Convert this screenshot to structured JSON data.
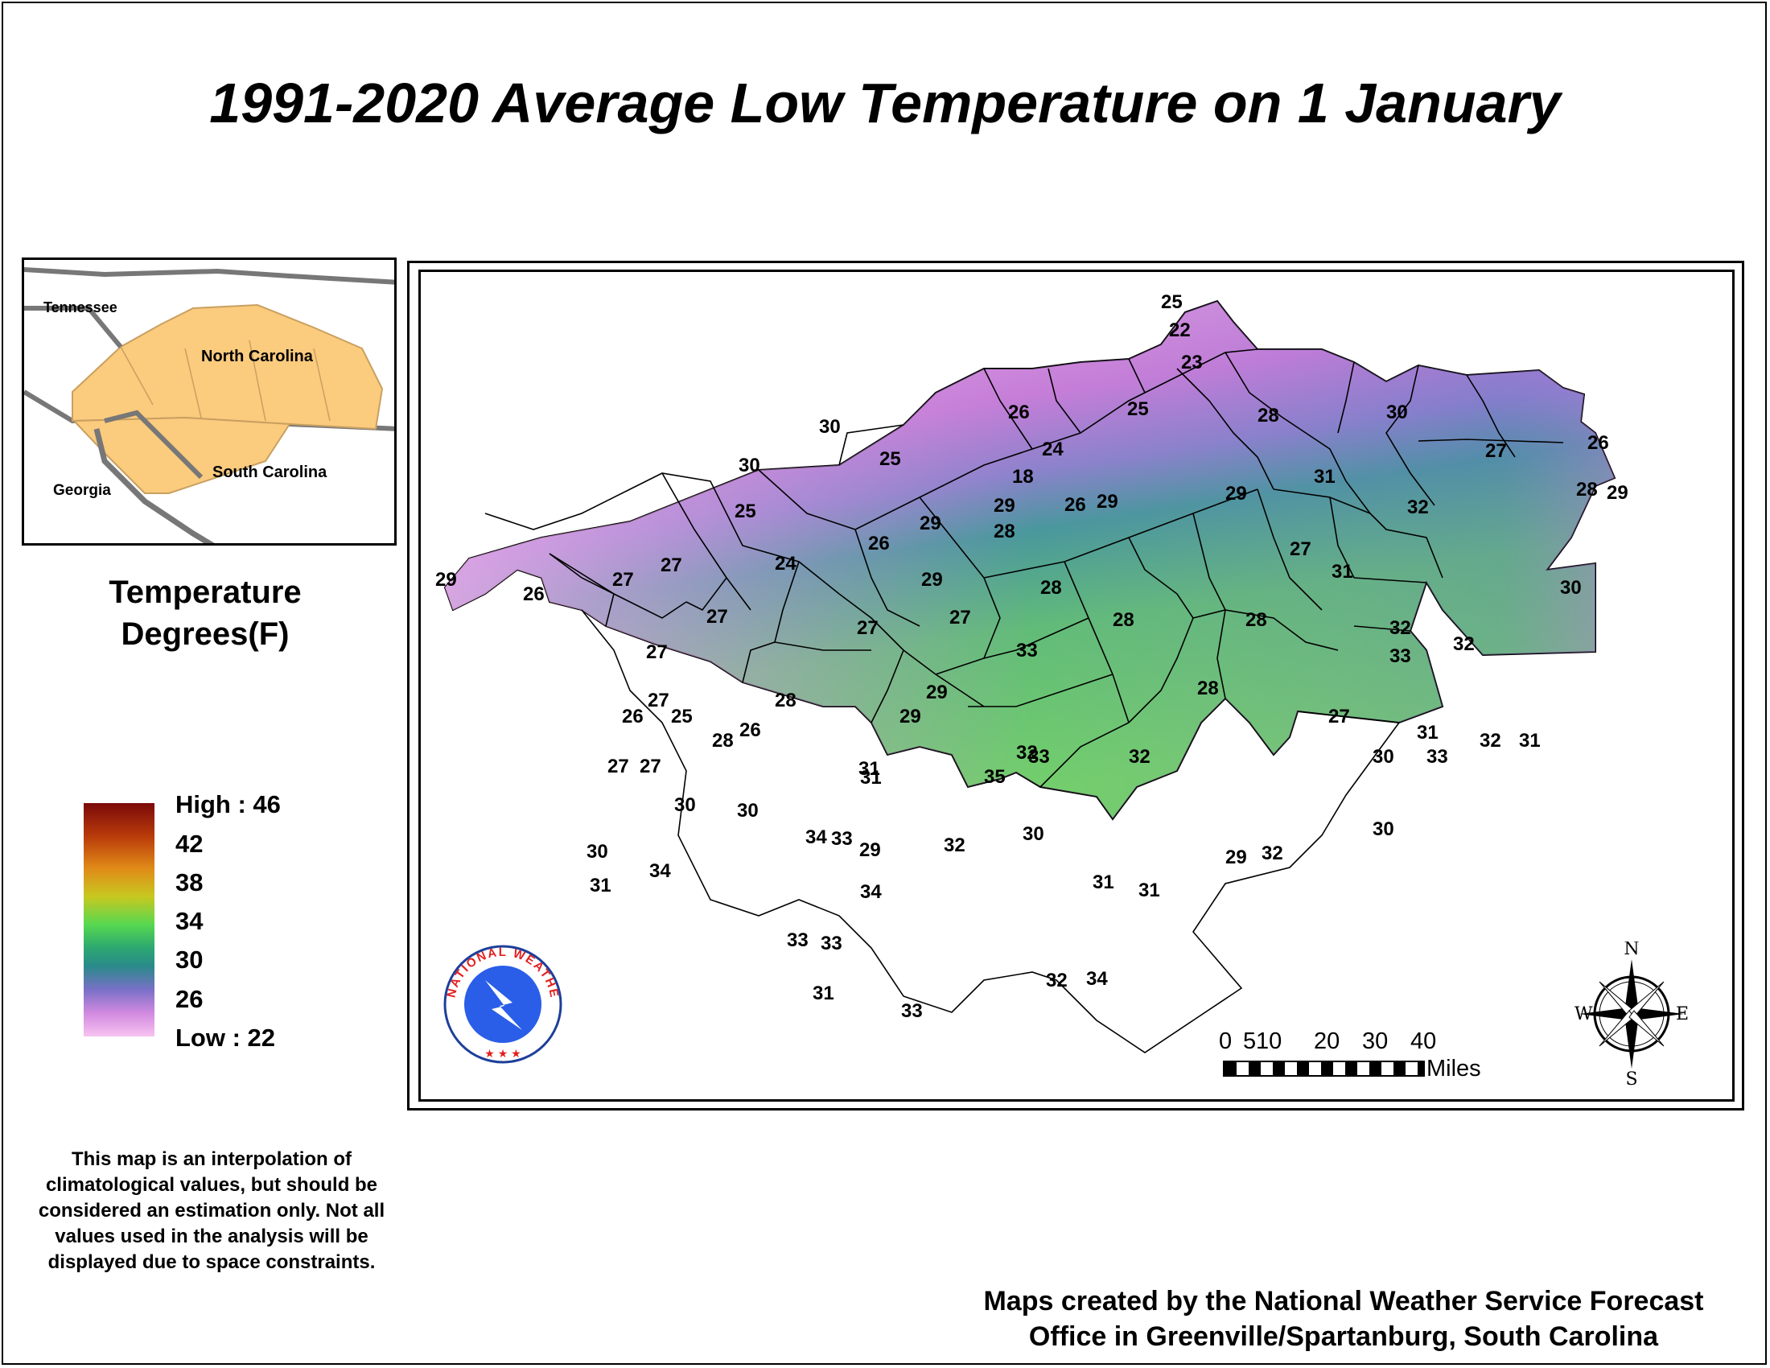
{
  "title": "1991-2020 Average Low Temperature on 1 January",
  "inset": {
    "labels": {
      "tennessee": "Tennessee",
      "north_carolina": "North Carolina",
      "south_carolina": "South Carolina",
      "georgia": "Georgia"
    },
    "fill_color": "#FBCB7E"
  },
  "legend": {
    "title_line1": "Temperature",
    "title_line2": "Degrees(F)",
    "labels": [
      "High : 46",
      "42",
      "38",
      "34",
      "30",
      "26",
      "Low : 22"
    ]
  },
  "note": "This map is an interpolation of climatological values, but should be considered an estimation only. Not all values used in the analysis will be displayed due to space constraints.",
  "credit_line1": "Maps created by the National Weather Service Forecast",
  "credit_line2": "Office in Greenville/Spartanburg, South Carolina",
  "scale_bar": {
    "ticks": [
      "0",
      "5",
      "10",
      "20",
      "30",
      "40"
    ],
    "unit": "Miles"
  },
  "compass": {
    "n": "N",
    "s": "S",
    "e": "E",
    "w": "W"
  },
  "logo_text": "NATIONAL WEATHER SERVICE",
  "map_values": [
    "25",
    "22",
    "23",
    "30",
    "25",
    "26",
    "24",
    "18",
    "25",
    "28",
    "30",
    "30",
    "25",
    "29",
    "26",
    "29",
    "29",
    "28",
    "31",
    "27",
    "32",
    "26",
    "28",
    "29",
    "29",
    "27",
    "24",
    "26",
    "29",
    "27",
    "27",
    "31",
    "27",
    "26",
    "29",
    "27",
    "28",
    "28",
    "28",
    "30",
    "27",
    "27",
    "32",
    "32",
    "33",
    "28",
    "29",
    "33",
    "27",
    "28",
    "27",
    "26",
    "25",
    "29",
    "28",
    "26",
    "33",
    "32",
    "31",
    "32",
    "31",
    "30",
    "33",
    "31",
    "27",
    "27",
    "31",
    "35",
    "32",
    "30",
    "30",
    "30",
    "34",
    "33",
    "29",
    "32",
    "30",
    "29",
    "32",
    "30",
    "31",
    "34",
    "31",
    "31",
    "33",
    "33",
    "34",
    "31",
    "32",
    "34",
    "33"
  ],
  "colors": {
    "cold": "#F2B6EA",
    "mid": "#2A9A8E",
    "warm": "#5EE050"
  }
}
